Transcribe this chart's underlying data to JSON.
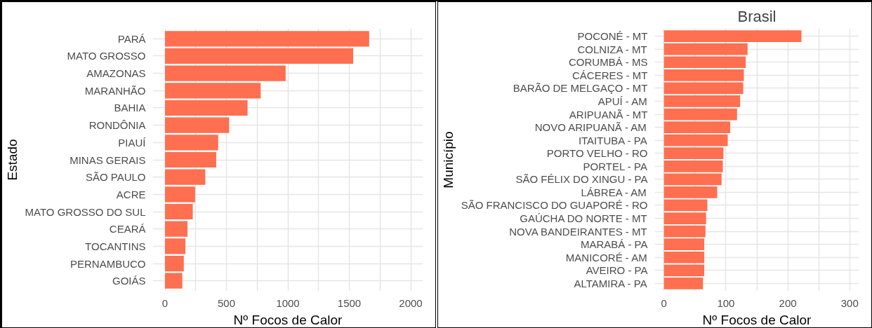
{
  "chart_data": [
    {
      "type": "bar",
      "orientation": "horizontal",
      "xlabel": "Nº Focos de Calor",
      "ylabel": "Estado",
      "grid": true,
      "categories": [
        "PARÁ",
        "MATO GROSSO",
        "AMAZONAS",
        "MARANHÃO",
        "BAHIA",
        "RONDÔNIA",
        "PIAUÍ",
        "MINAS GERAIS",
        "SÃO PAULO",
        "ACRE",
        "MATO GROSSO DO SUL",
        "CEARÁ",
        "TOCANTINS",
        "PERNAMBUCO",
        "GOIÁS"
      ],
      "values": [
        1662,
        1532,
        982,
        779,
        672,
        522,
        433,
        417,
        328,
        245,
        226,
        183,
        166,
        153,
        141
      ],
      "color": "#ff6f50",
      "xlim": [
        -100,
        2100
      ],
      "xticks": [
        0,
        {
          "value": 250,
          "label": null
        },
        500,
        {
          "value": 750,
          "label": null
        },
        1000,
        {
          "value": 1250,
          "label": null
        },
        1500,
        {
          "value": 1750,
          "label": null
        },
        2000
      ]
    },
    {
      "type": "bar",
      "orientation": "horizontal",
      "title": "Brasil",
      "xlabel": "Nº Focos de Calor",
      "ylabel": "Município",
      "grid": true,
      "categories": [
        "POCONÉ - MT",
        "COLNIZA - MT",
        "CORUMBÁ - MS",
        "CÁCERES - MT",
        "BARÃO DE MELGAÇO - MT",
        "APUÍ - AM",
        "ARIPUANÃ - MT",
        "NOVO ARIPUANÃ - AM",
        "ITAITUBA - PA",
        "PORTO VELHO - RO",
        "PORTEL - PA",
        "SÃO FÉLIX DO XINGU - PA",
        "LÁBREA - AM",
        "SÃO FRANCISCO DO GUAPORÉ - RO",
        "GAÚCHA DO NORTE - MT",
        "NOVA BANDEIRANTES - MT",
        "MARABÁ - PA",
        "MANICORÉ - AM",
        "AVEIRO - PA",
        "ALTAMIRA - PA"
      ],
      "values": [
        222,
        135,
        132,
        129,
        128,
        123,
        118,
        107,
        103,
        96,
        95,
        93,
        86,
        70,
        68,
        67,
        65,
        65,
        65,
        63
      ],
      "color": "#ff6f50",
      "xlim": [
        -15,
        315
      ],
      "xticks": [
        0,
        {
          "value": 50,
          "label": null
        },
        100,
        {
          "value": 150,
          "label": null
        },
        200,
        {
          "value": 250,
          "label": null
        },
        300
      ]
    }
  ]
}
